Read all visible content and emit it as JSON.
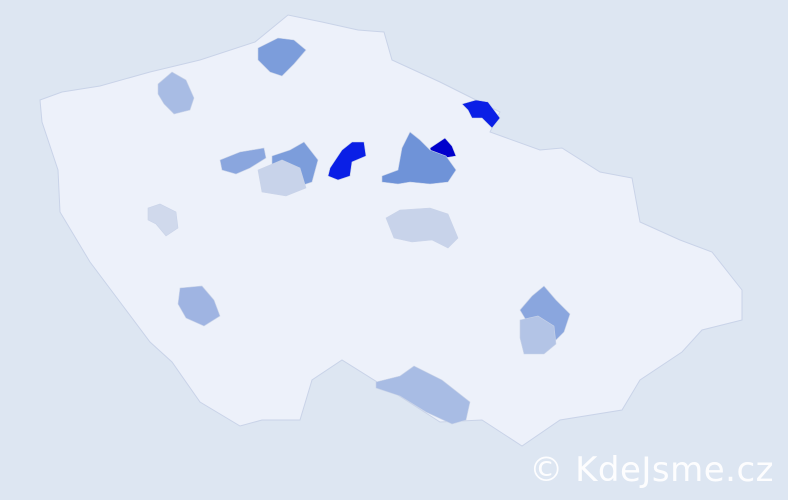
{
  "map": {
    "background": "#dde6f2",
    "base_fill": "#edf1fa",
    "border_color": "#c9d3e8",
    "regions": [
      {
        "id": "r1",
        "color": "#0000cc"
      },
      {
        "id": "r2",
        "color": "#0a1fe6"
      },
      {
        "id": "r3",
        "color": "#0a1fe6"
      },
      {
        "id": "r4",
        "color": "#6f93d8"
      },
      {
        "id": "r5",
        "color": "#7c9ddb"
      },
      {
        "id": "r6",
        "color": "#8aa6de"
      },
      {
        "id": "r7",
        "color": "#7c9ddb"
      },
      {
        "id": "r8",
        "color": "#a8bce4"
      },
      {
        "id": "r9",
        "color": "#a8bce4"
      },
      {
        "id": "r10",
        "color": "#c8d3ea"
      },
      {
        "id": "r11",
        "color": "#c8d3ea"
      },
      {
        "id": "r12",
        "color": "#9fb4e2"
      },
      {
        "id": "r13",
        "color": "#8aa6de"
      },
      {
        "id": "r14",
        "color": "#b3c4e6"
      },
      {
        "id": "r15",
        "color": "#d0d9ec"
      }
    ]
  },
  "watermark": "© KdeJsme.cz"
}
